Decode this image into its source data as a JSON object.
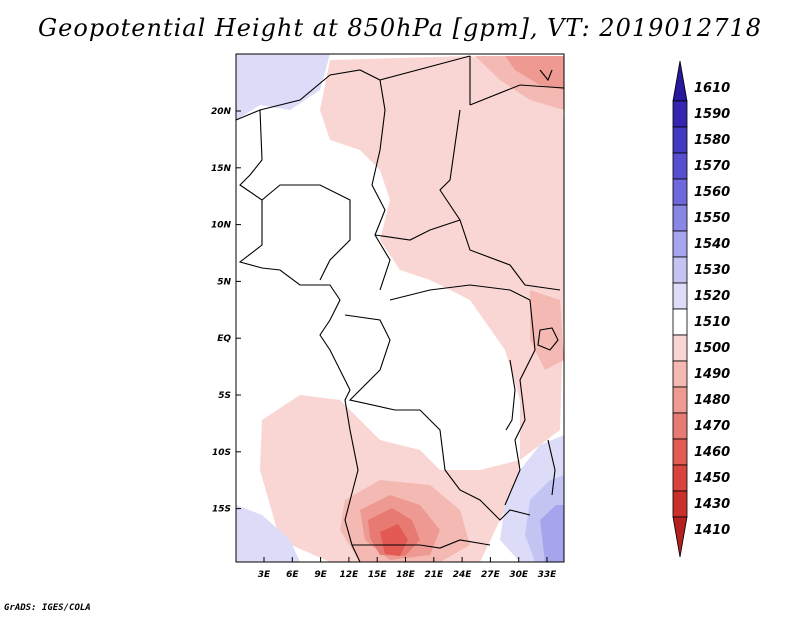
{
  "title": "Geopotential Height at 850hPa [gpm], VT: 2019012718",
  "credit": "GrADS: IGES/COLA",
  "colors": {
    "level_1410": "#b3201f",
    "level_1430": "#c9302c",
    "level_1450": "#d9433e",
    "level_1460": "#e25a53",
    "level_1470": "#e77a72",
    "level_1480": "#ee9a92",
    "level_1490": "#f4b9b3",
    "level_1500": "#f9d6d3",
    "level_1510": "#ffffff",
    "level_1520": "#dcdcf8",
    "level_1530": "#c4c4f3",
    "level_1540": "#a7a4ee",
    "level_1550": "#8a86e6",
    "level_1560": "#6f68dc",
    "level_1570": "#574fcf",
    "level_1580": "#4338c1",
    "level_1590": "#3426b1",
    "level_1610": "#27189c",
    "coastline": "#000000"
  },
  "map": {
    "lon_labels": [
      "3E",
      "6E",
      "9E",
      "12E",
      "15E",
      "18E",
      "21E",
      "24E",
      "27E",
      "30E",
      "33E"
    ],
    "lat_labels": [
      "20N",
      "15N",
      "10N",
      "5N",
      "EQ",
      "5S",
      "10S",
      "15S"
    ]
  },
  "colorbar": {
    "levels": [
      "1610",
      "1590",
      "1580",
      "1570",
      "1560",
      "1550",
      "1540",
      "1530",
      "1520",
      "1510",
      "1500",
      "1490",
      "1480",
      "1470",
      "1460",
      "1450",
      "1430",
      "1410"
    ]
  }
}
